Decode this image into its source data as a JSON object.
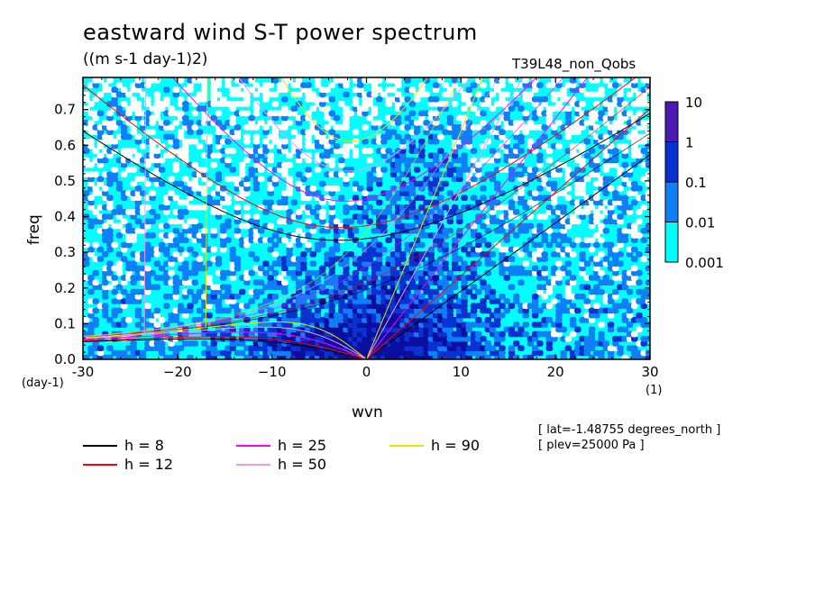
{
  "title": "eastward wind S-T power spectrum",
  "units": "((m s-1 day-1)2)",
  "run_label": "T39L48_non_Qobs",
  "info": [
    "[ lat=-1.48755 degrees_north ]",
    "[ plev=25000 Pa ]"
  ],
  "chart_data": {
    "type": "heatmap",
    "xlabel": "wvn",
    "ylabel": "freq",
    "x_unit": "(1)",
    "y_unit": "(day-1)",
    "xlim": [
      -30,
      30
    ],
    "ylim": [
      0,
      0.79
    ],
    "x_ticks": [
      -30,
      -20,
      -10,
      0,
      10,
      20,
      30
    ],
    "x_tick_labels": [
      "-30",
      "−20",
      "−10",
      "0",
      "10",
      "20",
      "30"
    ],
    "y_ticks": [
      0,
      0.1,
      0.2,
      0.3,
      0.4,
      0.5,
      0.6,
      0.7
    ],
    "y_tick_labels": [
      "0.0",
      "0.1",
      "0.2",
      "0.3",
      "0.4",
      "0.5",
      "0.6",
      "0.7"
    ],
    "colorbar": {
      "levels": [
        0.001,
        0.01,
        0.1,
        1,
        10
      ],
      "labels": [
        "0.001",
        "0.01",
        "0.1",
        "1",
        "10"
      ],
      "colors": [
        "#00ffff",
        "#0f7ff7",
        "#0a32d0",
        "#0a0fa0",
        "#4a1ab0"
      ]
    },
    "background_color": "#ffffff",
    "dispersion_curves": [
      {
        "label": "h =  8",
        "color": "#000000"
      },
      {
        "label": "h = 12",
        "color": "#ff0000"
      },
      {
        "label": "h = 25",
        "color": "#ff00ff"
      },
      {
        "label": "h = 50",
        "color": "#ee99ee"
      },
      {
        "label": "h = 90",
        "color": "#e6e600"
      }
    ]
  }
}
